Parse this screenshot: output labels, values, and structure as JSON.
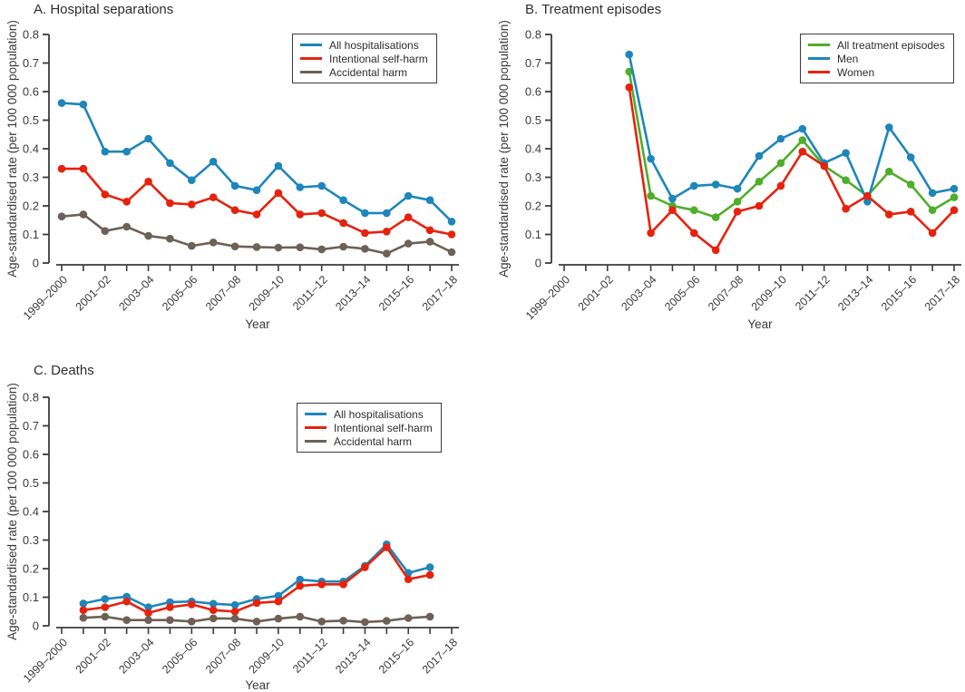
{
  "colors": {
    "blue": "#1d86bb",
    "red": "#e6220d",
    "gray": "#6d6056",
    "green": "#4fae2a",
    "axis": "#3b3b3b",
    "text": "#2d2d2d"
  },
  "chart_data": [
    {
      "id": "hospital-separations",
      "type": "line",
      "title": "A. Hospital separations",
      "xlabel": "Year",
      "ylabel": "Age-standardised rate (per 100 000 population)",
      "ylim": [
        0,
        0.8
      ],
      "y_ticks": [
        0,
        0.1,
        0.2,
        0.3,
        0.4,
        0.5,
        0.6,
        0.7,
        0.8
      ],
      "grid": false,
      "legend_position": "top-right",
      "categories": [
        "1999–2000",
        "2000–01",
        "2001–02",
        "2002–03",
        "2003–04",
        "2004–05",
        "2005–06",
        "2006–07",
        "2007–08",
        "2008–09",
        "2009–10",
        "2010–11",
        "2011–12",
        "2012–13",
        "2013–14",
        "2014–15",
        "2015–16",
        "2016–17",
        "2017–18"
      ],
      "x_tick_labels": [
        "1999–2000",
        "2001–02",
        "2003–04",
        "2005–06",
        "2007–08",
        "2009–10",
        "2011–12",
        "2013–14",
        "2015–16",
        "2017–18"
      ],
      "series": [
        {
          "name": "All hospitalisations",
          "color": "#1d86bb",
          "values": [
            0.56,
            0.555,
            0.39,
            0.39,
            0.435,
            0.35,
            0.29,
            0.355,
            0.27,
            0.255,
            0.34,
            0.265,
            0.27,
            0.22,
            0.175,
            0.175,
            0.235,
            0.22,
            0.145
          ]
        },
        {
          "name": "Intentional self-harm",
          "color": "#e6220d",
          "values": [
            0.33,
            0.33,
            0.24,
            0.215,
            0.285,
            0.21,
            0.205,
            0.23,
            0.185,
            0.17,
            0.245,
            0.17,
            0.175,
            0.14,
            0.105,
            0.11,
            0.16,
            0.115,
            0.1
          ]
        },
        {
          "name": "Accidental harm",
          "color": "#6d6056",
          "values": [
            0.163,
            0.17,
            0.112,
            0.127,
            0.095,
            0.085,
            0.06,
            0.072,
            0.058,
            0.056,
            0.054,
            0.055,
            0.048,
            0.057,
            0.05,
            0.033,
            0.068,
            0.075,
            0.038
          ]
        }
      ]
    },
    {
      "id": "treatment-episodes",
      "type": "line",
      "title": "B. Treatment episodes",
      "xlabel": "Year",
      "ylabel": "Age-standardised rate (per 100 000 population)",
      "ylim": [
        0,
        0.8
      ],
      "y_ticks": [
        0,
        0.1,
        0.2,
        0.3,
        0.4,
        0.5,
        0.6,
        0.7,
        0.8
      ],
      "grid": false,
      "legend_position": "top-right",
      "categories": [
        "1999–2000",
        "2000–01",
        "2001–02",
        "2002–03",
        "2003–04",
        "2004–05",
        "2005–06",
        "2006–07",
        "2007–08",
        "2008–09",
        "2009–10",
        "2010–11",
        "2011–12",
        "2012–13",
        "2013–14",
        "2014–15",
        "2015–16",
        "2016–17",
        "2017–18"
      ],
      "x_tick_labels": [
        "1999–2000",
        "2001–02",
        "2003–04",
        "2005–06",
        "2007–08",
        "2009–10",
        "2011–12",
        "2013–14",
        "2015–16",
        "2017–18"
      ],
      "series": [
        {
          "name": "All treatment episodes",
          "color": "#4fae2a",
          "values": [
            null,
            null,
            null,
            0.67,
            0.235,
            0.2,
            0.185,
            0.16,
            0.215,
            0.285,
            0.35,
            0.43,
            0.34,
            0.29,
            0.235,
            0.32,
            0.275,
            0.185,
            0.23
          ]
        },
        {
          "name": "Men",
          "color": "#1d86bb",
          "values": [
            null,
            null,
            null,
            0.73,
            0.365,
            0.225,
            0.27,
            0.275,
            0.26,
            0.375,
            0.435,
            0.47,
            0.35,
            0.385,
            0.215,
            0.475,
            0.37,
            0.245,
            0.26
          ]
        },
        {
          "name": "Women",
          "color": "#e6220d",
          "values": [
            null,
            null,
            null,
            0.615,
            0.105,
            0.185,
            0.105,
            0.045,
            0.18,
            0.2,
            0.27,
            0.39,
            0.34,
            0.19,
            0.235,
            0.17,
            0.18,
            0.105,
            0.185
          ]
        }
      ]
    },
    {
      "id": "deaths",
      "type": "line",
      "title": "C. Deaths",
      "xlabel": "Year",
      "ylabel": "Age-standardised rate (per 100 000 population)",
      "ylim": [
        0,
        0.8
      ],
      "y_ticks": [
        0,
        0.1,
        0.2,
        0.3,
        0.4,
        0.5,
        0.6,
        0.7,
        0.8
      ],
      "grid": false,
      "legend_position": "top-right",
      "categories": [
        "1999–2000",
        "2000–01",
        "2001–02",
        "2002–03",
        "2003–04",
        "2004–05",
        "2005–06",
        "2006–07",
        "2007–08",
        "2008–09",
        "2009–10",
        "2010–11",
        "2011–12",
        "2012–13",
        "2013–14",
        "2014–15",
        "2015–16",
        "2016–17",
        "2017–18"
      ],
      "x_tick_labels": [
        "1999–2000",
        "2001–02",
        "2003–04",
        "2005–06",
        "2007–08",
        "2009–10",
        "2011–12",
        "2013–14",
        "2015–16",
        "2017–18"
      ],
      "series": [
        {
          "name": "All hospitalisations",
          "color": "#1d86bb",
          "values": [
            null,
            0.078,
            0.094,
            0.102,
            0.065,
            0.083,
            0.085,
            0.077,
            0.073,
            0.094,
            0.105,
            0.162,
            0.155,
            0.155,
            0.21,
            0.285,
            0.185,
            0.205,
            null
          ]
        },
        {
          "name": "Intentional self-harm",
          "color": "#e6220d",
          "values": [
            null,
            0.055,
            0.065,
            0.085,
            0.045,
            0.065,
            0.075,
            0.055,
            0.05,
            0.08,
            0.085,
            0.14,
            0.145,
            0.145,
            0.205,
            0.275,
            0.163,
            0.178,
            null
          ]
        },
        {
          "name": "Accidental harm",
          "color": "#6d6056",
          "values": [
            null,
            0.028,
            0.032,
            0.02,
            0.02,
            0.02,
            0.015,
            0.026,
            0.025,
            0.015,
            0.025,
            0.032,
            0.015,
            0.018,
            0.013,
            0.017,
            0.027,
            0.032,
            null
          ]
        }
      ]
    }
  ]
}
